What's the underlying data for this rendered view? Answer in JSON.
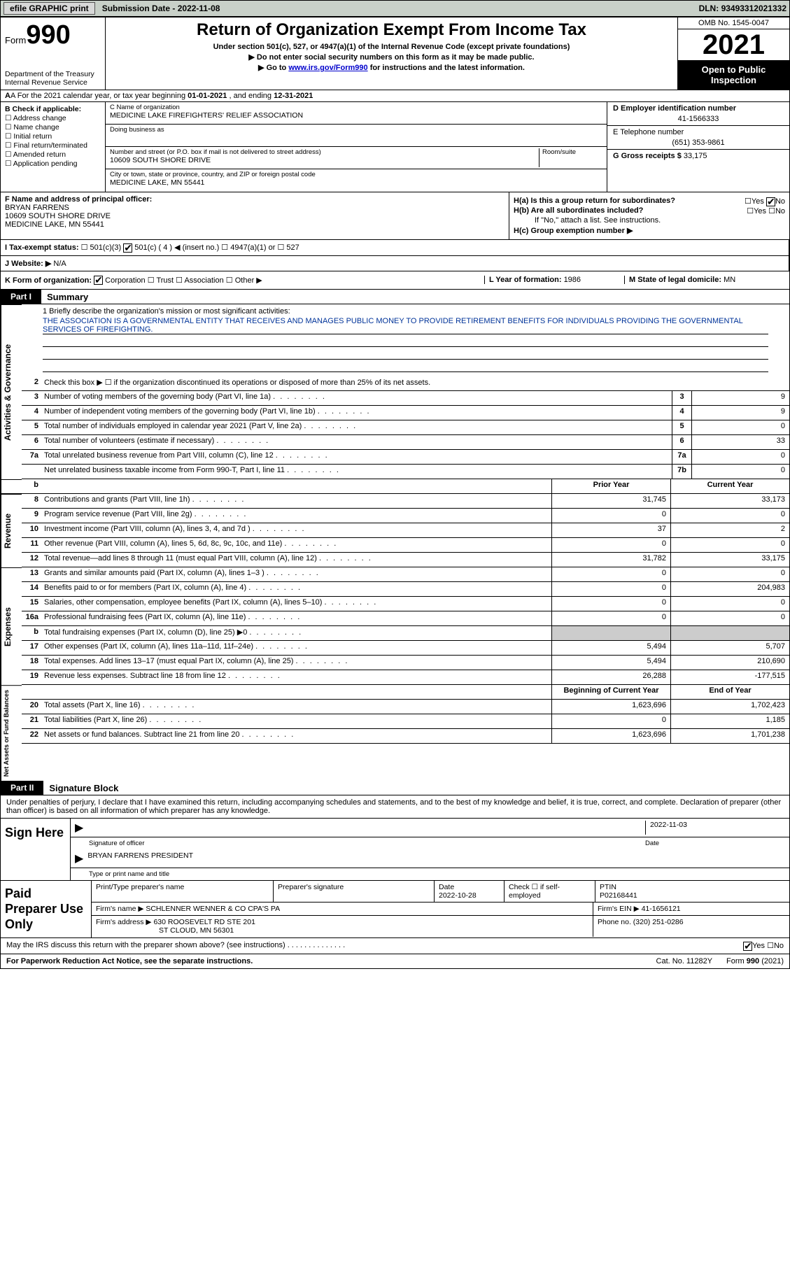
{
  "topbar": {
    "efile": "efile GRAPHIC print",
    "subdate_lbl": "Submission Date - ",
    "subdate": "2022-11-08",
    "dln_lbl": "DLN: ",
    "dln": "93493312021332"
  },
  "header": {
    "form_word": "Form",
    "form_num": "990",
    "dept": "Department of the Treasury\nInternal Revenue Service",
    "title": "Return of Organization Exempt From Income Tax",
    "sub1": "Under section 501(c), 527, or 4947(a)(1) of the Internal Revenue Code (except private foundations)",
    "sub2": "▶ Do not enter social security numbers on this form as it may be made public.",
    "sub3_pre": "▶ Go to ",
    "sub3_link": "www.irs.gov/Form990",
    "sub3_post": " for instructions and the latest information.",
    "omb": "OMB No. 1545-0047",
    "year": "2021",
    "inspect": "Open to Public Inspection"
  },
  "rowA": {
    "text_pre": "A For the 2021 calendar year, or tax year beginning ",
    "begin": "01-01-2021",
    "text_mid": " , and ending ",
    "end": "12-31-2021"
  },
  "colB": {
    "hdr": "B Check if applicable:",
    "items": [
      "Address change",
      "Name change",
      "Initial return",
      "Final return/terminated",
      "Amended return",
      "Application pending"
    ]
  },
  "colC": {
    "name_lbl": "C Name of organization",
    "name": "MEDICINE LAKE FIREFIGHTERS' RELIEF ASSOCIATION",
    "dba_lbl": "Doing business as",
    "dba": "",
    "addr_lbl": "Number and street (or P.O. box if mail is not delivered to street address)",
    "room_lbl": "Room/suite",
    "addr": "10609 SOUTH SHORE DRIVE",
    "city_lbl": "City or town, state or province, country, and ZIP or foreign postal code",
    "city": "MEDICINE LAKE, MN  55441"
  },
  "colD": {
    "ein_lbl": "D Employer identification number",
    "ein": "41-1566333",
    "tel_lbl": "E Telephone number",
    "tel": "(651) 353-9861",
    "gross_lbl": "G Gross receipts $ ",
    "gross": "33,175"
  },
  "rowF": {
    "lbl": "F Name and address of principal officer:",
    "name": "BRYAN FARRENS",
    "addr1": "10609 SOUTH SHORE DRIVE",
    "addr2": "MEDICINE LAKE, MN  55441"
  },
  "rowH": {
    "ha": "H(a) Is this a group return for subordinates?",
    "hb": "H(b) Are all subordinates included?",
    "hb_note": "If \"No,\" attach a list. See instructions.",
    "hc": "H(c) Group exemption number ▶",
    "yes": "Yes",
    "no": "No"
  },
  "rowI": {
    "lbl": "I Tax-exempt status:",
    "opts": [
      "501(c)(3)",
      "501(c) ( 4 ) ◀ (insert no.)",
      "4947(a)(1) or",
      "527"
    ]
  },
  "rowJ": {
    "lbl": "J Website: ▶",
    "val": "N/A"
  },
  "rowK": {
    "lbl": "K Form of organization:",
    "opts": [
      "Corporation",
      "Trust",
      "Association",
      "Other ▶"
    ],
    "yof_lbl": "L Year of formation: ",
    "yof": "1986",
    "state_lbl": "M State of legal domicile: ",
    "state": "MN"
  },
  "part1": {
    "hdr": "Part I",
    "title": "Summary"
  },
  "mission": {
    "lbl": "1  Briefly describe the organization's mission or most significant activities:",
    "text": "THE ASSOCIATION IS A GOVERNMENTAL ENTITY THAT RECEIVES AND MANAGES PUBLIC MONEY TO PROVIDE RETIREMENT BENEFITS FOR INDIVIDUALS PROVIDING THE GOVERNMENTAL SERVICES OF FIREFIGHTING."
  },
  "line2": "Check this box ▶ ☐ if the organization discontinued its operations or disposed of more than 25% of its net assets.",
  "sections": {
    "activities": "Activities & Governance",
    "revenue": "Revenue",
    "expenses": "Expenses",
    "netassets": "Net Assets or Fund Balances"
  },
  "lines_gov": [
    {
      "n": "3",
      "d": "Number of voting members of the governing body (Part VI, line 1a)",
      "box": "3",
      "v": "9"
    },
    {
      "n": "4",
      "d": "Number of independent voting members of the governing body (Part VI, line 1b)",
      "box": "4",
      "v": "9"
    },
    {
      "n": "5",
      "d": "Total number of individuals employed in calendar year 2021 (Part V, line 2a)",
      "box": "5",
      "v": "0"
    },
    {
      "n": "6",
      "d": "Total number of volunteers (estimate if necessary)",
      "box": "6",
      "v": "33"
    },
    {
      "n": "7a",
      "d": "Total unrelated business revenue from Part VIII, column (C), line 12",
      "box": "7a",
      "v": "0"
    },
    {
      "n": "",
      "d": "Net unrelated business taxable income from Form 990-T, Part I, line 11",
      "box": "7b",
      "v": "0"
    }
  ],
  "col_hdrs": {
    "b": "b",
    "prior": "Prior Year",
    "current": "Current Year"
  },
  "lines_rev": [
    {
      "n": "8",
      "d": "Contributions and grants (Part VIII, line 1h)",
      "p": "31,745",
      "c": "33,173"
    },
    {
      "n": "9",
      "d": "Program service revenue (Part VIII, line 2g)",
      "p": "0",
      "c": "0"
    },
    {
      "n": "10",
      "d": "Investment income (Part VIII, column (A), lines 3, 4, and 7d )",
      "p": "37",
      "c": "2"
    },
    {
      "n": "11",
      "d": "Other revenue (Part VIII, column (A), lines 5, 6d, 8c, 9c, 10c, and 11e)",
      "p": "0",
      "c": "0"
    },
    {
      "n": "12",
      "d": "Total revenue—add lines 8 through 11 (must equal Part VIII, column (A), line 12)",
      "p": "31,782",
      "c": "33,175"
    }
  ],
  "lines_exp": [
    {
      "n": "13",
      "d": "Grants and similar amounts paid (Part IX, column (A), lines 1–3 )",
      "p": "0",
      "c": "0"
    },
    {
      "n": "14",
      "d": "Benefits paid to or for members (Part IX, column (A), line 4)",
      "p": "0",
      "c": "204,983"
    },
    {
      "n": "15",
      "d": "Salaries, other compensation, employee benefits (Part IX, column (A), lines 5–10)",
      "p": "0",
      "c": "0"
    },
    {
      "n": "16a",
      "d": "Professional fundraising fees (Part IX, column (A), line 11e)",
      "p": "0",
      "c": "0"
    },
    {
      "n": "b",
      "d": "Total fundraising expenses (Part IX, column (D), line 25) ▶0",
      "p": "GREY",
      "c": "GREY"
    },
    {
      "n": "17",
      "d": "Other expenses (Part IX, column (A), lines 11a–11d, 11f–24e)",
      "p": "5,494",
      "c": "5,707"
    },
    {
      "n": "18",
      "d": "Total expenses. Add lines 13–17 (must equal Part IX, column (A), line 25)",
      "p": "5,494",
      "c": "210,690"
    },
    {
      "n": "19",
      "d": "Revenue less expenses. Subtract line 18 from line 12",
      "p": "26,288",
      "c": "-177,515"
    }
  ],
  "col_hdrs2": {
    "prior": "Beginning of Current Year",
    "current": "End of Year"
  },
  "lines_net": [
    {
      "n": "20",
      "d": "Total assets (Part X, line 16)",
      "p": "1,623,696",
      "c": "1,702,423"
    },
    {
      "n": "21",
      "d": "Total liabilities (Part X, line 26)",
      "p": "0",
      "c": "1,185"
    },
    {
      "n": "22",
      "d": "Net assets or fund balances. Subtract line 21 from line 20",
      "p": "1,623,696",
      "c": "1,701,238"
    }
  ],
  "part2": {
    "hdr": "Part II",
    "title": "Signature Block"
  },
  "sig": {
    "decl": "Under penalties of perjury, I declare that I have examined this return, including accompanying schedules and statements, and to the best of my knowledge and belief, it is true, correct, and complete. Declaration of preparer (other than officer) is based on all information of which preparer has any knowledge.",
    "sign_here": "Sign Here",
    "sig_officer": "Signature of officer",
    "date": "Date",
    "sig_date": "2022-11-03",
    "name_title": "BRYAN FARRENS  PRESIDENT",
    "name_title_lbl": "Type or print name and title"
  },
  "prep": {
    "hdr": "Paid Preparer Use Only",
    "pname_lbl": "Print/Type preparer's name",
    "psig_lbl": "Preparer's signature",
    "pdate_lbl": "Date",
    "pdate": "2022-10-28",
    "chk_lbl": "Check ☐ if self-employed",
    "ptin_lbl": "PTIN",
    "ptin": "P02168441",
    "firm_name_lbl": "Firm's name  ▶ ",
    "firm_name": "SCHLENNER WENNER & CO CPA'S PA",
    "firm_ein_lbl": "Firm's EIN ▶ ",
    "firm_ein": "41-1656121",
    "firm_addr_lbl": "Firm's address ▶ ",
    "firm_addr1": "630 ROOSEVELT RD STE 201",
    "firm_addr2": "ST CLOUD, MN  56301",
    "phone_lbl": "Phone no. ",
    "phone": "(320) 251-0286"
  },
  "discuss": {
    "q": "May the IRS discuss this return with the preparer shown above? (see instructions)",
    "yes": "Yes",
    "no": "No"
  },
  "footer": {
    "left": "For Paperwork Reduction Act Notice, see the separate instructions.",
    "mid": "Cat. No. 11282Y",
    "right": "Form 990 (2021)"
  }
}
